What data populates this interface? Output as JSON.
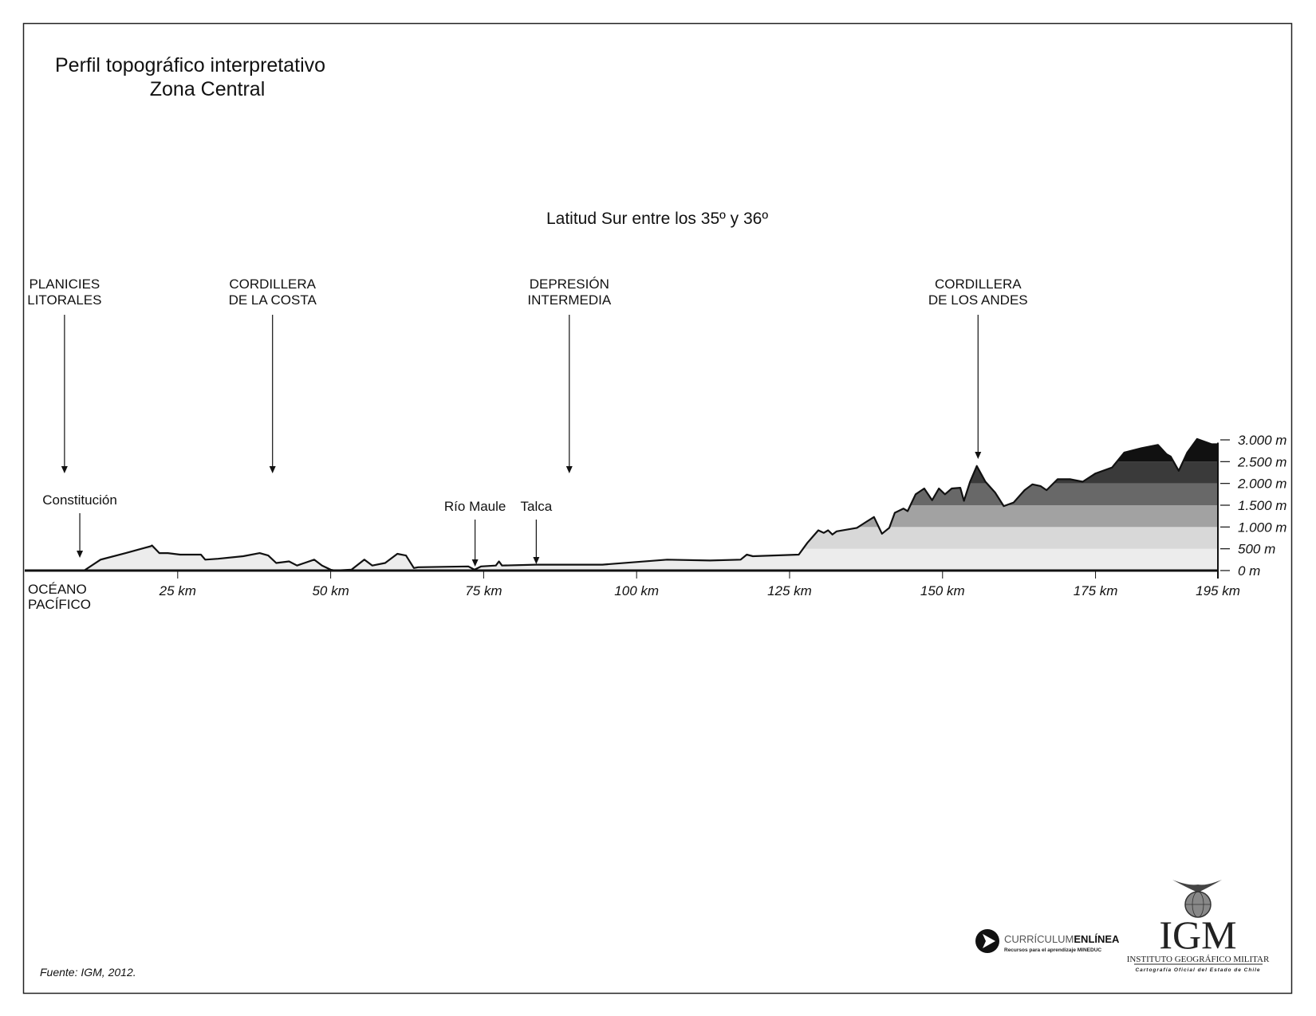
{
  "chart_data": {
    "type": "area",
    "title": "Perfil topográfico interpretativo",
    "title_line2": "Zona Central",
    "subtitle": "Latitud Sur entre los 35º y 36º",
    "xlabel": "",
    "ylabel": "",
    "xlim": [
      0,
      195
    ],
    "ylim": [
      0,
      3000
    ],
    "x_ticks": [
      25,
      50,
      75,
      100,
      125,
      150,
      175,
      195
    ],
    "x_tick_labels": [
      "25 km",
      "50 km",
      "75 km",
      "100 km",
      "125 km",
      "150 km",
      "175 km",
      "195 km"
    ],
    "y_ticks": [
      0,
      500,
      1000,
      1500,
      2000,
      2500,
      3000
    ],
    "y_tick_labels": [
      "0 m",
      "500 m",
      "1.000 m",
      "1.500 m",
      "2.000 m",
      "2.500 m",
      "3.000 m"
    ],
    "elevation_band_colors": [
      "#ececec",
      "#d8d8d8",
      "#a2a2a2",
      "#686868",
      "#3a3a3a",
      "#111111"
    ],
    "grid": false,
    "profile": {
      "x_km": [
        9.7,
        12.4,
        16.5,
        20.6,
        20.8,
        22,
        23.4,
        25.4,
        28.8,
        29.5,
        31.6,
        35.7,
        38.4,
        39.8,
        41.1,
        43.2,
        44.5,
        47.3,
        48.6,
        50,
        50.7,
        53.4,
        55.5,
        56.8,
        58.9,
        60.9,
        62.3,
        63.6,
        64.3,
        72.5,
        73.5,
        74.6,
        77,
        77.5,
        78,
        83.5,
        94.4,
        105,
        112,
        117,
        118,
        119,
        126.5,
        127.9,
        129.7,
        130.6,
        131.3,
        132,
        132.7,
        136,
        137.5,
        138.8,
        140.1,
        141.3,
        142.2,
        143.6,
        144.3,
        145.6,
        147,
        148.3,
        149.4,
        150.4,
        151.5,
        152.9,
        153.5,
        154.5,
        155.6,
        157,
        158.6,
        160,
        161.6,
        163.4,
        164.7,
        166,
        167,
        168.8,
        170.9,
        172.9,
        175,
        177.7,
        179.7,
        182.5,
        185.2,
        186.6,
        187.3,
        188.6,
        190,
        191.6,
        194,
        195
      ],
      "elevation_m": [
        0,
        250,
        400,
        560,
        577,
        400,
        400,
        365,
        365,
        250,
        270,
        330,
        400,
        346,
        173,
        211,
        115,
        250,
        115,
        20,
        0,
        20,
        250,
        115,
        173,
        385,
        346,
        58,
        77,
        96,
        20,
        96,
        115,
        211,
        115,
        135,
        135,
        250,
        230,
        250,
        365,
        330,
        365,
        635,
        923,
        865,
        923,
        827,
        900,
        980,
        1115,
        1230,
        846,
        980,
        1327,
        1423,
        1365,
        1750,
        1885,
        1615,
        1885,
        1750,
        1885,
        1900,
        1600,
        2040,
        2400,
        2040,
        1790,
        1480,
        1560,
        1846,
        1980,
        1940,
        1846,
        2096,
        2096,
        2040,
        2230,
        2365,
        2710,
        2808,
        2885,
        2670,
        2615,
        2290,
        2710,
        3020,
        2900,
        2900
      ]
    },
    "regions": [
      {
        "line1": "PLANICIES",
        "line2": "LITORALES",
        "km": 6.5
      },
      {
        "line1": "CORDILLERA",
        "line2": "DE LA COSTA",
        "km": 40.5
      },
      {
        "line1": "DEPRESIÓN",
        "line2": "INTERMEDIA",
        "km": 89
      },
      {
        "line1": "CORDILLERA",
        "line2": "DE LOS ANDES",
        "km": 155.8
      }
    ],
    "places": [
      {
        "label": "Constitución",
        "km": 9
      },
      {
        "label": "Río Maule",
        "km": 73.6
      },
      {
        "label": "Talca",
        "km": 83.6
      }
    ],
    "ocean_label_line1": "OCÉANO",
    "ocean_label_line2": "PACÍFICO"
  },
  "footer": {
    "source": "Fuente: IGM,  2012.",
    "logo_curriculum_main_light": "CURRÍCULUM",
    "logo_curriculum_main_bold": "ENLÍNEA",
    "logo_curriculum_sub": "Recursos para el aprendizaje MINEDUC",
    "logo_igm": "IGM",
    "logo_igm_name": "INSTITUTO GEOGRÁFICO MILITAR",
    "logo_igm_sub": "Cartografía Oficial del Estado de Chile"
  }
}
